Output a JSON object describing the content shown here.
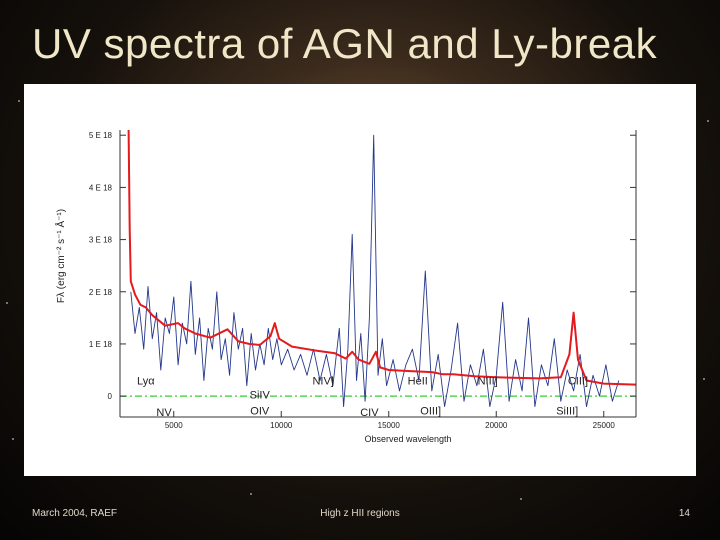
{
  "slide": {
    "title": "UV spectra of AGN and Ly-break",
    "footer_left": "March 2004, RAEF",
    "footer_center": "High z HII regions",
    "page_number": "14"
  },
  "colors": {
    "title": "#f0e6c8",
    "composite_line": "#e41a1c",
    "observed_line": "#24378a",
    "zero_line": "#33cc33"
  },
  "chart_data": {
    "type": "line",
    "xlabel": "Observed wavelength",
    "ylabel": "Fλ (erg cm⁻² s⁻¹ Å⁻¹)",
    "xlim": [
      2500,
      26500
    ],
    "ylim": [
      -4e-19,
      5.1e-18
    ],
    "x_ticks": [
      5000,
      10000,
      15000,
      20000,
      25000
    ],
    "x_tick_labels": [
      "5000",
      "10000",
      "15000",
      "20000",
      "25000"
    ],
    "y_ticks": [
      0,
      1e-18,
      2e-18,
      3e-18,
      4e-18,
      5e-18
    ],
    "y_tick_labels": [
      "0",
      "1 E 18",
      "2 E 18",
      "3 E 18",
      "4 E 18",
      "5 E 18"
    ],
    "grid": false,
    "zero_line": {
      "y": 0,
      "style": "dash-dot",
      "color": "#33cc33"
    },
    "series": [
      {
        "color": "#e41a1c",
        "points": [
          [
            2900,
            5.1e-18
          ],
          [
            2950,
            3.2e-18
          ],
          [
            3000,
            2.2e-18
          ],
          [
            3200,
            1.95e-18
          ],
          [
            3450,
            1.75e-18
          ],
          [
            3700,
            1.7e-18
          ],
          [
            4000,
            1.55e-18
          ],
          [
            4600,
            1.35e-18
          ],
          [
            5200,
            1.4e-18
          ],
          [
            5500,
            1.3e-18
          ],
          [
            6000,
            1.2e-18
          ],
          [
            6700,
            1.12e-18
          ],
          [
            7500,
            1.28e-18
          ],
          [
            8000,
            1.05e-18
          ],
          [
            8500,
            1e-18
          ],
          [
            9000,
            9.8e-19
          ],
          [
            9500,
            1.15e-18
          ],
          [
            9700,
            1.4e-18
          ],
          [
            9900,
            1.1e-18
          ],
          [
            10500,
            9.5e-19
          ],
          [
            11500,
            8.8e-19
          ],
          [
            12500,
            8.2e-19
          ],
          [
            13000,
            7.2e-19
          ],
          [
            13300,
            8.5e-19
          ],
          [
            13600,
            7e-19
          ],
          [
            14100,
            6.2e-19
          ],
          [
            14400,
            8.5e-19
          ],
          [
            14600,
            5.5e-19
          ],
          [
            15000,
            5e-19
          ],
          [
            16000,
            4.8e-19
          ],
          [
            17000,
            4.6e-19
          ],
          [
            17500,
            4.2e-19
          ],
          [
            18000,
            4.2e-19
          ],
          [
            19000,
            3.8e-19
          ],
          [
            20000,
            3.6e-19
          ],
          [
            21000,
            3.5e-19
          ],
          [
            22000,
            3.4e-19
          ],
          [
            23000,
            3.6e-19
          ],
          [
            23400,
            8e-19
          ],
          [
            23600,
            1.6e-18
          ],
          [
            23800,
            7e-19
          ],
          [
            24200,
            3e-19
          ],
          [
            25000,
            2.4e-19
          ],
          [
            26500,
            2.2e-19
          ]
        ]
      },
      {
        "color": "#24378a",
        "points": [
          [
            3000,
            2e-18
          ],
          [
            3200,
            1.2e-18
          ],
          [
            3400,
            1.7e-18
          ],
          [
            3600,
            9e-19
          ],
          [
            3800,
            2.1e-18
          ],
          [
            4000,
            1.1e-18
          ],
          [
            4200,
            1.6e-18
          ],
          [
            4400,
            5e-19
          ],
          [
            4600,
            1.5e-18
          ],
          [
            4800,
            1.2e-18
          ],
          [
            5000,
            1.9e-18
          ],
          [
            5200,
            6e-19
          ],
          [
            5400,
            1.4e-18
          ],
          [
            5600,
            1e-18
          ],
          [
            5800,
            2.2e-18
          ],
          [
            6000,
            8e-19
          ],
          [
            6200,
            1.5e-18
          ],
          [
            6400,
            3e-19
          ],
          [
            6600,
            1.3e-18
          ],
          [
            6800,
            9e-19
          ],
          [
            7000,
            2e-18
          ],
          [
            7200,
            7e-19
          ],
          [
            7400,
            1.1e-18
          ],
          [
            7600,
            4e-19
          ],
          [
            7800,
            1.6e-18
          ],
          [
            8000,
            9e-19
          ],
          [
            8200,
            1.3e-18
          ],
          [
            8400,
            2e-19
          ],
          [
            8600,
            1.2e-18
          ],
          [
            8800,
            5e-19
          ],
          [
            9000,
            1e-18
          ],
          [
            9200,
            6e-19
          ],
          [
            9400,
            1.3e-18
          ],
          [
            9600,
            7e-19
          ],
          [
            9800,
            1.1e-18
          ],
          [
            10000,
            6e-19
          ],
          [
            10300,
            9e-19
          ],
          [
            10600,
            5e-19
          ],
          [
            10900,
            8e-19
          ],
          [
            11200,
            4e-19
          ],
          [
            11500,
            9e-19
          ],
          [
            11800,
            3e-19
          ],
          [
            12100,
            8e-19
          ],
          [
            12400,
            2e-19
          ],
          [
            12700,
            1.3e-18
          ],
          [
            12900,
            -2e-19
          ],
          [
            13100,
            9e-19
          ],
          [
            13300,
            3.1e-18
          ],
          [
            13500,
            3e-19
          ],
          [
            13700,
            1.2e-18
          ],
          [
            13900,
            -1e-19
          ],
          [
            14100,
            1.5e-18
          ],
          [
            14300,
            5e-18
          ],
          [
            14500,
            4e-19
          ],
          [
            14700,
            1.1e-18
          ],
          [
            14900,
            2e-19
          ],
          [
            15200,
            7e-19
          ],
          [
            15500,
            1e-19
          ],
          [
            15800,
            6e-19
          ],
          [
            16100,
            9e-19
          ],
          [
            16400,
            3e-19
          ],
          [
            16700,
            2.4e-18
          ],
          [
            17000,
            1e-19
          ],
          [
            17300,
            8e-19
          ],
          [
            17600,
            -2e-19
          ],
          [
            17900,
            5e-19
          ],
          [
            18200,
            1.4e-18
          ],
          [
            18500,
            -1e-19
          ],
          [
            18800,
            6e-19
          ],
          [
            19100,
            2e-19
          ],
          [
            19400,
            9e-19
          ],
          [
            19700,
            -2e-19
          ],
          [
            20000,
            4e-19
          ],
          [
            20300,
            1.8e-18
          ],
          [
            20600,
            -1e-19
          ],
          [
            20900,
            7e-19
          ],
          [
            21200,
            1e-19
          ],
          [
            21500,
            1.5e-18
          ],
          [
            21800,
            -2e-19
          ],
          [
            22100,
            6e-19
          ],
          [
            22400,
            2e-19
          ],
          [
            22700,
            1.1e-18
          ],
          [
            23000,
            -1e-19
          ],
          [
            23300,
            5e-19
          ],
          [
            23600,
            1e-19
          ],
          [
            23900,
            8e-19
          ],
          [
            24200,
            -2e-19
          ],
          [
            24500,
            4e-19
          ],
          [
            24800,
            0.0
          ],
          [
            25100,
            6e-19
          ],
          [
            25400,
            -1e-19
          ],
          [
            25700,
            3e-19
          ]
        ]
      }
    ],
    "annotations": [
      {
        "text": "Lyα",
        "x": 3700,
        "y": 2.2e-19
      },
      {
        "text": "NV",
        "x": 4550,
        "y": -3.8e-19
      },
      {
        "text": "SiIV",
        "x": 9000,
        "y": -5e-20
      },
      {
        "text": "OIV",
        "x": 9000,
        "y": -3.5e-19
      },
      {
        "text": "NIV]",
        "x": 11950,
        "y": 2.2e-19
      },
      {
        "text": "CIV",
        "x": 14100,
        "y": -3.8e-19
      },
      {
        "text": "HeII",
        "x": 16350,
        "y": 2.2e-19
      },
      {
        "text": "OIII]",
        "x": 16950,
        "y": -3.5e-19
      },
      {
        "text": "NIII]",
        "x": 19600,
        "y": 2.2e-19
      },
      {
        "text": "CIII]",
        "x": 23800,
        "y": 2.2e-19
      },
      {
        "text": "SiIII]",
        "x": 23300,
        "y": -3.5e-19
      }
    ]
  }
}
